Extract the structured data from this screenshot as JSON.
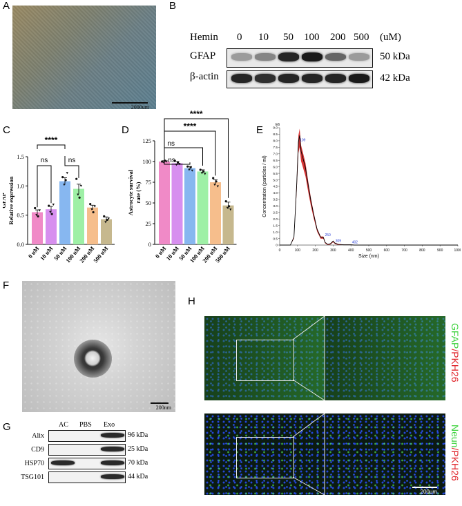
{
  "panels": {
    "A": "A",
    "B": "B",
    "C": "C",
    "D": "D",
    "E": "E",
    "F": "F",
    "G": "G",
    "H": "H"
  },
  "panelA": {
    "scale_label": "2000um"
  },
  "panelB": {
    "header_label": "Hemin",
    "concentrations": [
      "0",
      "10",
      "50",
      "100",
      "200",
      "500"
    ],
    "unit": "(uM)",
    "rows": [
      {
        "name": "GFAP",
        "kda": "50 kDa",
        "intensity": [
          0.35,
          0.45,
          0.9,
          0.95,
          0.6,
          0.35
        ]
      },
      {
        "name": "β-actin",
        "kda": "42 kDa",
        "intensity": [
          0.9,
          0.85,
          0.9,
          0.9,
          0.9,
          0.95
        ]
      }
    ]
  },
  "chart_data": [
    {
      "panel": "C",
      "type": "bar",
      "categories": [
        "0 uM",
        "10 uM",
        "50 uM",
        "100 uM",
        "200 uM",
        "500 uM"
      ],
      "values": [
        0.55,
        0.6,
        1.08,
        0.95,
        0.63,
        0.43
      ],
      "errors": [
        0.04,
        0.05,
        0.06,
        0.08,
        0.04,
        0.04
      ],
      "points": [
        [
          0.62,
          0.5,
          0.48,
          0.58
        ],
        [
          0.66,
          0.55,
          0.52,
          0.68
        ],
        [
          1.15,
          1.02,
          1.1,
          1.22
        ],
        [
          1.12,
          0.85,
          0.8,
          1.0
        ],
        [
          0.69,
          0.6,
          0.55,
          0.65
        ],
        [
          0.48,
          0.38,
          0.42,
          0.44
        ]
      ],
      "colors": [
        "#f08ac7",
        "#d78fef",
        "#87b7f0",
        "#9ef0a6",
        "#f6be8c",
        "#c6b88e"
      ],
      "ylabel_line1": "GFAP",
      "ylabel_line2": "Relative expression",
      "yticks": [
        "0.0",
        "0.5",
        "1.0",
        "1.5"
      ],
      "ylim": [
        0,
        1.5
      ],
      "brackets": [
        {
          "label": "****"
        },
        {
          "label": "ns"
        },
        {
          "label": "ns"
        }
      ]
    },
    {
      "panel": "D",
      "type": "bar",
      "categories": [
        "0 uM",
        "10 uM",
        "50 uM",
        "100 uM",
        "200 uM",
        "500 uM"
      ],
      "values": [
        100,
        98,
        92,
        88,
        75,
        47
      ],
      "errors": [
        1,
        2,
        2,
        2,
        3,
        4
      ],
      "points": [
        [
          100,
          99,
          101,
          100
        ],
        [
          101,
          96,
          99,
          97
        ],
        [
          94,
          90,
          93,
          89
        ],
        [
          90,
          86,
          88,
          85
        ],
        [
          80,
          72,
          76,
          70
        ],
        [
          52,
          44,
          46,
          42
        ]
      ],
      "colors": [
        "#f08ac7",
        "#d78fef",
        "#87b7f0",
        "#9ef0a6",
        "#f6be8c",
        "#c6b88e"
      ],
      "ylabel_line1": "Astrocyte survival",
      "ylabel_line2": "rate (%)",
      "yticks": [
        "0",
        "25",
        "50",
        "75",
        "100",
        "125"
      ],
      "ylim": [
        0,
        125
      ],
      "brackets": [
        {
          "label": "****"
        },
        {
          "label": "****"
        },
        {
          "label": "ns"
        },
        {
          "label": "ns"
        }
      ]
    },
    {
      "panel": "E",
      "type": "line",
      "xlabel": "Size (nm)",
      "ylabel": "Concentration (particles / ml)",
      "ymult": "E6",
      "xticks": [
        "0",
        "100",
        "200",
        "300",
        "400",
        "500",
        "600",
        "700",
        "800",
        "900",
        "1000"
      ],
      "yticks": [
        "0",
        "0.5",
        "1.0",
        "1.5",
        "2.0",
        "2.5",
        "3.0",
        "3.5",
        "4.0",
        "4.5",
        "5.0",
        "5.5",
        "6.0",
        "6.5",
        "7.0",
        "7.5",
        "8.0",
        "8.5",
        "9.0"
      ],
      "xlim": [
        0,
        1000
      ],
      "ylim": [
        0,
        9
      ],
      "x": [
        0,
        60,
        80,
        95,
        105,
        112,
        120,
        130,
        145,
        160,
        175,
        190,
        210,
        230,
        245,
        255,
        270,
        285,
        300,
        310,
        330,
        360,
        400,
        420,
        500,
        1000
      ],
      "y": [
        0,
        0,
        0.6,
        4.5,
        7.9,
        8.4,
        7.2,
        6.7,
        5.9,
        4.6,
        3.4,
        2.4,
        1.2,
        0.6,
        0.6,
        0.2,
        0.05,
        0.1,
        0.3,
        0.15,
        0.05,
        0.02,
        0.02,
        0,
        0,
        0
      ],
      "peaks": [
        {
          "x": 109,
          "y": 7.9,
          "label": "109"
        },
        {
          "x": 250,
          "y": 0.6,
          "label": "250"
        },
        {
          "x": 309,
          "y": 0.15,
          "label": "309"
        },
        {
          "x": 402,
          "y": 0.05,
          "label": "402"
        }
      ]
    }
  ],
  "panelF": {
    "scale_label": "200nm"
  },
  "panelG": {
    "columns": [
      "AC",
      "PBS",
      "Exo"
    ],
    "rows": [
      {
        "name": "Alix",
        "kda": "96 kDa",
        "present": [
          0,
          0,
          1
        ]
      },
      {
        "name": "CD9",
        "kda": "25 kDa",
        "present": [
          0,
          0,
          1
        ]
      },
      {
        "name": "HSP70",
        "kda": "70 kDa",
        "present": [
          1,
          0,
          1
        ]
      },
      {
        "name": "TSG101",
        "kda": "44 kDa",
        "present": [
          0,
          0,
          1
        ]
      }
    ]
  },
  "panelH": {
    "top_label_a": "GFAP",
    "top_label_b": "/PKH26",
    "bottom_label_a": "Neun",
    "bottom_label_b": "/PKH26",
    "scale_label": "200um",
    "label_green": "#3dd23d",
    "label_red": "#e0242a"
  }
}
